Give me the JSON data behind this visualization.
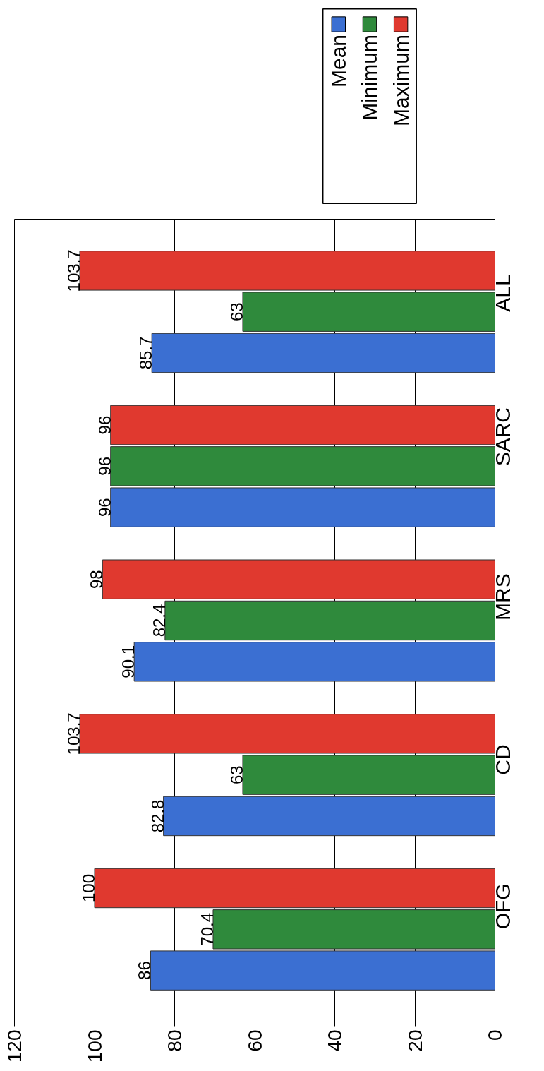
{
  "chart_data": {
    "type": "bar",
    "orientation": "horizontal",
    "categories": [
      "ALL",
      "SARC",
      "MRS",
      "CD",
      "OFG"
    ],
    "series": [
      {
        "name": "Mean",
        "color": "#3b6fd2",
        "values": [
          85.7,
          96,
          90.1,
          82.8,
          86
        ]
      },
      {
        "name": "Minimum",
        "color": "#2f8a3c",
        "values": [
          63,
          96,
          82.4,
          63,
          70.4
        ]
      },
      {
        "name": "Maximum",
        "color": "#e0392f",
        "values": [
          103.7,
          96,
          98,
          103.7,
          100
        ]
      }
    ],
    "xlim": [
      120,
      0
    ],
    "xticks": [
      0,
      20,
      40,
      60,
      80,
      100,
      120
    ],
    "grid": "x",
    "legend": "top right",
    "data_labels": true
  }
}
